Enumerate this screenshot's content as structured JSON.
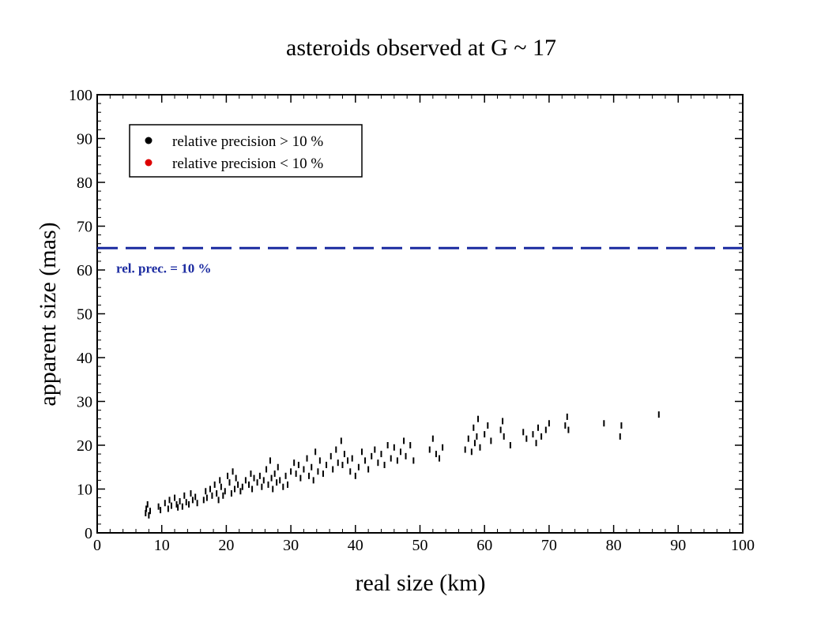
{
  "chart_data": {
    "type": "scatter",
    "title": "asteroids observed at G ~ 17",
    "xlabel": "real size   (km)",
    "ylabel": "apparent size  (mas)",
    "xlim": [
      0,
      100
    ],
    "ylim": [
      0,
      100
    ],
    "xticks": [
      0,
      10,
      20,
      30,
      40,
      50,
      60,
      70,
      80,
      90,
      100
    ],
    "yticks": [
      0,
      10,
      20,
      30,
      40,
      50,
      60,
      70,
      80,
      90,
      100
    ],
    "grid": false,
    "legend_placement": "top-left",
    "series": [
      {
        "name": "relative precision > 10 %",
        "color": "#000000",
        "points": [
          [
            7.5,
            4.5
          ],
          [
            7.6,
            5.5
          ],
          [
            7.8,
            6.5
          ],
          [
            8.0,
            4.0
          ],
          [
            8.2,
            5.0
          ],
          [
            9.5,
            6.0
          ],
          [
            9.8,
            5.2
          ],
          [
            10.5,
            6.8
          ],
          [
            11.0,
            5.5
          ],
          [
            11.2,
            7.5
          ],
          [
            11.5,
            6.2
          ],
          [
            12.0,
            8.0
          ],
          [
            12.3,
            6.5
          ],
          [
            12.5,
            5.8
          ],
          [
            12.8,
            7.2
          ],
          [
            13.2,
            6.0
          ],
          [
            13.5,
            8.5
          ],
          [
            13.8,
            7.0
          ],
          [
            14.2,
            6.5
          ],
          [
            14.5,
            9.0
          ],
          [
            14.8,
            7.5
          ],
          [
            15.2,
            8.2
          ],
          [
            15.5,
            6.8
          ],
          [
            16.5,
            7.5
          ],
          [
            16.8,
            9.5
          ],
          [
            17.0,
            8.0
          ],
          [
            17.5,
            10.0
          ],
          [
            17.8,
            8.5
          ],
          [
            18.2,
            11.0
          ],
          [
            18.5,
            9.0
          ],
          [
            18.8,
            7.5
          ],
          [
            19.0,
            12.0
          ],
          [
            19.2,
            10.5
          ],
          [
            19.5,
            8.5
          ],
          [
            19.8,
            9.5
          ],
          [
            20.2,
            13.0
          ],
          [
            20.5,
            11.5
          ],
          [
            20.8,
            9.0
          ],
          [
            21.0,
            14.0
          ],
          [
            21.3,
            10.0
          ],
          [
            21.5,
            12.5
          ],
          [
            21.8,
            11.0
          ],
          [
            22.2,
            9.5
          ],
          [
            22.5,
            10.5
          ],
          [
            23.0,
            12.0
          ],
          [
            23.5,
            11.0
          ],
          [
            23.8,
            13.5
          ],
          [
            24.0,
            10.0
          ],
          [
            24.3,
            12.5
          ],
          [
            24.8,
            11.5
          ],
          [
            25.2,
            13.0
          ],
          [
            25.5,
            10.5
          ],
          [
            25.8,
            12.0
          ],
          [
            26.2,
            14.5
          ],
          [
            26.5,
            11.0
          ],
          [
            26.8,
            16.5
          ],
          [
            27.0,
            12.5
          ],
          [
            27.2,
            10.0
          ],
          [
            27.5,
            13.5
          ],
          [
            27.8,
            11.5
          ],
          [
            28.0,
            15.0
          ],
          [
            28.3,
            12.0
          ],
          [
            28.8,
            10.5
          ],
          [
            29.2,
            13.0
          ],
          [
            29.5,
            11.0
          ],
          [
            30.0,
            14.0
          ],
          [
            30.5,
            16.0
          ],
          [
            30.8,
            13.5
          ],
          [
            31.2,
            15.5
          ],
          [
            31.5,
            12.5
          ],
          [
            32.0,
            14.5
          ],
          [
            32.5,
            17.0
          ],
          [
            32.8,
            13.0
          ],
          [
            33.2,
            15.0
          ],
          [
            33.5,
            12.0
          ],
          [
            33.8,
            18.5
          ],
          [
            34.2,
            14.0
          ],
          [
            34.5,
            16.5
          ],
          [
            35.0,
            13.5
          ],
          [
            35.5,
            15.5
          ],
          [
            36.2,
            17.5
          ],
          [
            36.5,
            14.5
          ],
          [
            37.0,
            19.0
          ],
          [
            37.3,
            16.0
          ],
          [
            37.8,
            21.0
          ],
          [
            38.0,
            15.5
          ],
          [
            38.3,
            18.0
          ],
          [
            38.8,
            16.5
          ],
          [
            39.2,
            14.0
          ],
          [
            39.5,
            17.0
          ],
          [
            40.0,
            13.0
          ],
          [
            40.5,
            15.0
          ],
          [
            41.0,
            18.5
          ],
          [
            41.5,
            16.5
          ],
          [
            42.0,
            14.5
          ],
          [
            42.5,
            17.5
          ],
          [
            43.0,
            19.0
          ],
          [
            43.5,
            16.0
          ],
          [
            44.0,
            18.0
          ],
          [
            44.5,
            15.5
          ],
          [
            45.0,
            20.0
          ],
          [
            45.5,
            17.0
          ],
          [
            46.0,
            19.5
          ],
          [
            46.5,
            16.5
          ],
          [
            47.0,
            18.5
          ],
          [
            47.5,
            21.0
          ],
          [
            47.8,
            17.5
          ],
          [
            48.5,
            20.0
          ],
          [
            49.0,
            16.5
          ],
          [
            51.5,
            19.0
          ],
          [
            52.0,
            21.5
          ],
          [
            52.5,
            18.0
          ],
          [
            53.0,
            17.0
          ],
          [
            53.5,
            19.5
          ],
          [
            57.0,
            19.0
          ],
          [
            57.5,
            21.5
          ],
          [
            58.0,
            18.5
          ],
          [
            58.3,
            24.0
          ],
          [
            58.5,
            20.5
          ],
          [
            58.8,
            22.0
          ],
          [
            59.0,
            26.0
          ],
          [
            59.3,
            19.5
          ],
          [
            60.0,
            22.5
          ],
          [
            60.5,
            24.5
          ],
          [
            61.0,
            21.0
          ],
          [
            62.5,
            23.5
          ],
          [
            62.8,
            25.5
          ],
          [
            63.0,
            22.0
          ],
          [
            64.0,
            20.0
          ],
          [
            66.0,
            23.0
          ],
          [
            66.5,
            21.5
          ],
          [
            67.5,
            22.5
          ],
          [
            68.0,
            20.5
          ],
          [
            68.3,
            24.0
          ],
          [
            68.8,
            22.0
          ],
          [
            69.5,
            23.5
          ],
          [
            70.0,
            25.0
          ],
          [
            72.5,
            24.5
          ],
          [
            72.8,
            26.5
          ],
          [
            73.0,
            23.5
          ],
          [
            78.5,
            25.0
          ],
          [
            81.0,
            22.0
          ],
          [
            81.2,
            24.5
          ],
          [
            87.0,
            27.0
          ]
        ]
      },
      {
        "name": "relative precision < 10 %",
        "color": "#dd0000",
        "points": []
      }
    ],
    "reference_line": {
      "y": 65,
      "label": "rel. prec. = 10 %",
      "color": "#1a2aa0",
      "style": "dashed"
    }
  }
}
